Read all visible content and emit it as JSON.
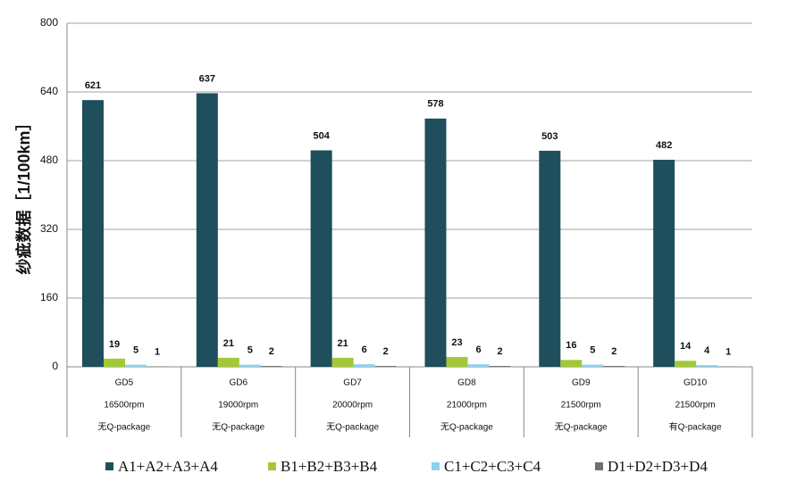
{
  "chart_data": {
    "type": "bar",
    "y_label": "纱疵数据［1/100km］",
    "categories": [
      [
        "GD5",
        "16500rpm",
        "无Q-package"
      ],
      [
        "GD6",
        "19000rpm",
        "无Q-package"
      ],
      [
        "GD7",
        "20000rpm",
        "无Q-package"
      ],
      [
        "GD8",
        "21000rpm",
        "无Q-package"
      ],
      [
        "GD9",
        "21500rpm",
        "无Q-package"
      ],
      [
        "GD10",
        "21500rpm",
        "有Q-package"
      ]
    ],
    "series": [
      {
        "name": "A1+A2+A3+A4",
        "color": "#1f4e5c",
        "values": [
          621,
          637,
          504,
          578,
          503,
          482
        ]
      },
      {
        "name": "B1+B2+B3+B4",
        "color": "#a2c838",
        "values": [
          19,
          21,
          21,
          23,
          16,
          14
        ]
      },
      {
        "name": "C1+C2+C3+C4",
        "color": "#8fd0ee",
        "values": [
          5,
          5,
          6,
          6,
          5,
          4
        ]
      },
      {
        "name": "D1+D2+D3+D4",
        "color": "#707070",
        "values": [
          1,
          2,
          2,
          2,
          2,
          1
        ]
      }
    ],
    "ylim": [
      0,
      800
    ],
    "yticks": [
      0,
      160,
      320,
      480,
      640,
      800
    ],
    "grid": true,
    "legend": "bottom"
  }
}
